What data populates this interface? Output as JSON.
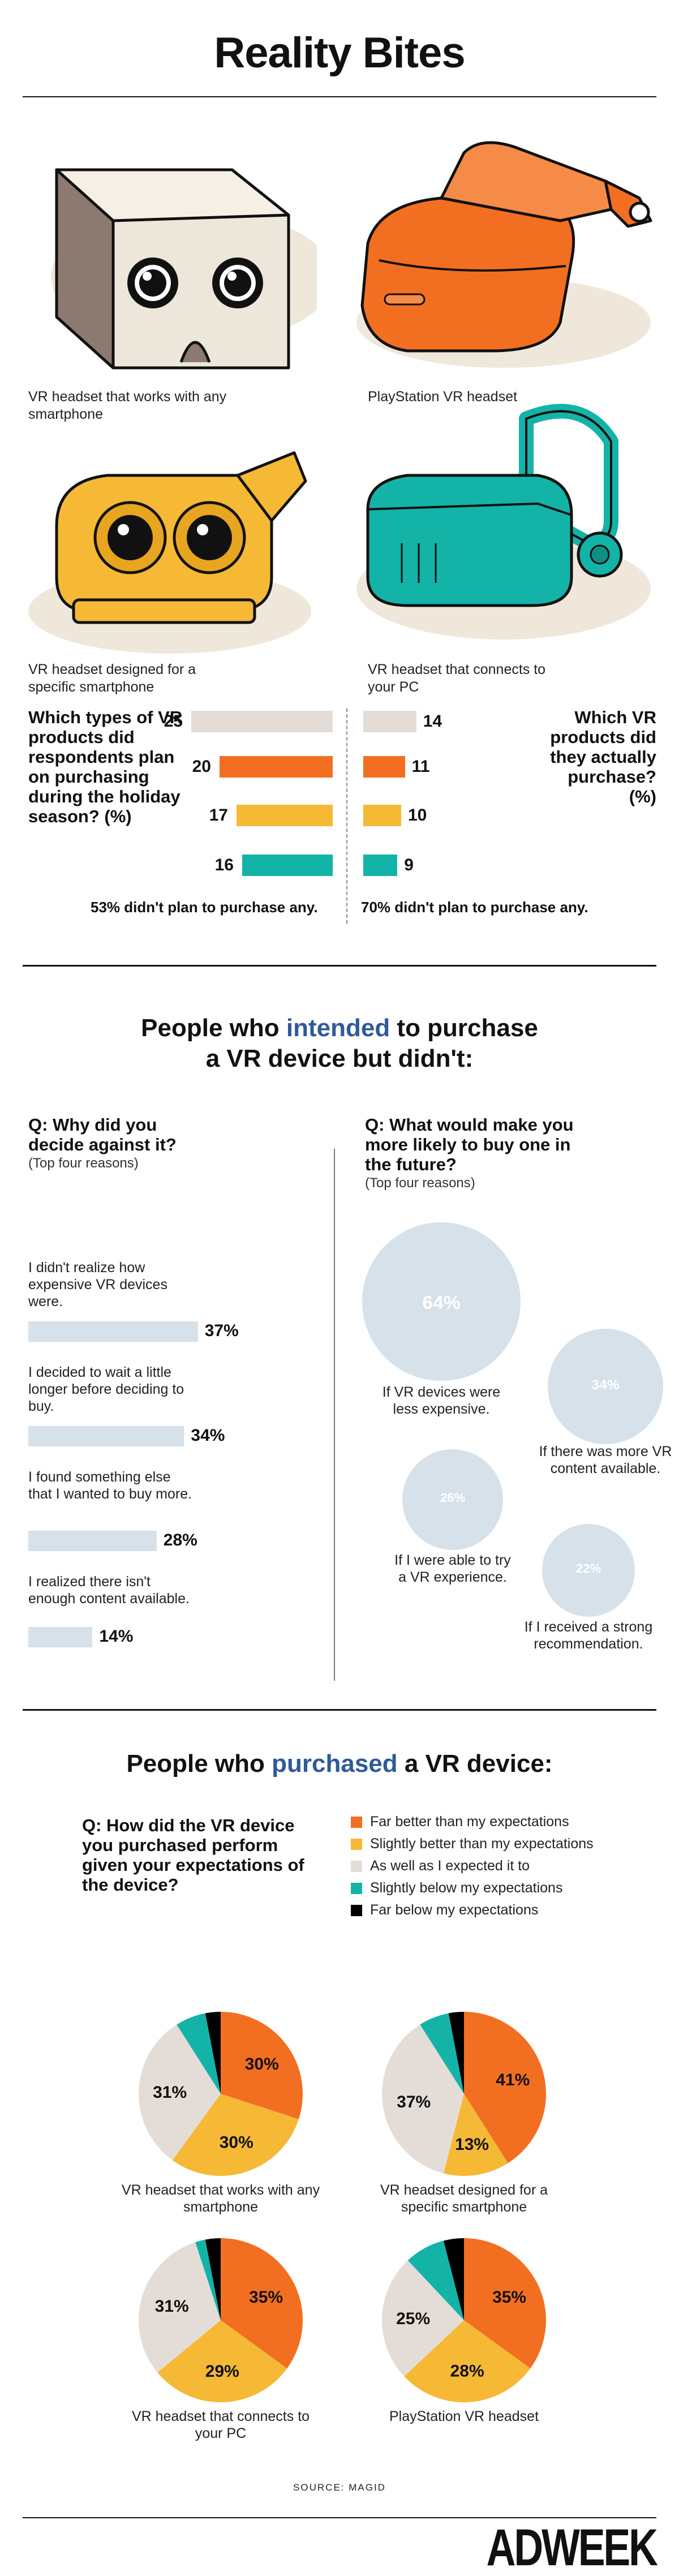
{
  "title": "Reality Bites",
  "devices": [
    {
      "caption": "VR headset that works with any smartphone"
    },
    {
      "caption": "PlayStation VR headset"
    },
    {
      "caption": "VR headset designed for a specific smartphone"
    },
    {
      "caption": "VR headset that connects to your PC"
    }
  ],
  "plan_question": "Which types of VR products did respondents plan on purchasing during the holiday season? (%)",
  "bought_question": "Which VR products did they actually purchase? (%)",
  "plan_note": "53% didn't plan to purchase any.",
  "bought_note": "70% didn't plan to purchase any.",
  "section2": {
    "title_pre": "People who ",
    "title_hl": "intended",
    "title_post": " to purchase",
    "title_line2": "a VR device but didn't:"
  },
  "why_q": {
    "title": "Q: Why did you decide against it?",
    "sub": "(Top four reasons)"
  },
  "reasons": [
    {
      "text": "I didn't realize how expensive VR devices were.",
      "pct": "37%"
    },
    {
      "text": "I decided to wait a little longer before deciding to buy.",
      "pct": "34%"
    },
    {
      "text": "I found something else that I wanted to buy more.",
      "pct": "28%"
    },
    {
      "text": "I realized there isn't enough content available.",
      "pct": "14%"
    }
  ],
  "future_q": {
    "title": "Q: What would make you more likely to buy one in the future?",
    "sub": "(Top four reasons)"
  },
  "future": [
    {
      "pct": "64%",
      "text": "If VR devices were less expensive."
    },
    {
      "pct": "34%",
      "text": "If there was more VR content available."
    },
    {
      "pct": "26%",
      "text": "If I were able to try a VR experience."
    },
    {
      "pct": "22%",
      "text": "If I received a strong recommendation."
    }
  ],
  "section3": {
    "title_pre": "People who ",
    "title_hl": "purchased",
    "title_post": " a VR device:"
  },
  "perf_q": "Q: How did the VR device you purchased perform given your expectations of the device?",
  "legend": [
    {
      "label": "Far better than my expectations",
      "color": "#f26f21"
    },
    {
      "label": "Slightly better than my expectations",
      "color": "#f5b935"
    },
    {
      "label": "As well as I expected it to",
      "color": "#e4ddd7"
    },
    {
      "label": "Slightly below my expectations",
      "color": "#14b3a8"
    },
    {
      "label": "Far below my expectations",
      "color": "#000000"
    }
  ],
  "chart_data": [
    {
      "type": "bar",
      "title": "Which types of VR products did respondents plan on purchasing during the holiday season? (%)",
      "categories": [
        "VR headset that works with any smartphone",
        "PlayStation VR headset",
        "VR headset designed for a specific smartphone",
        "VR headset that connects to your PC"
      ],
      "values": [
        25,
        20,
        17,
        16
      ],
      "colors": [
        "#e4ddd7",
        "#f26f21",
        "#f5b935",
        "#14b3a8"
      ]
    },
    {
      "type": "bar",
      "title": "Which VR products did they actually purchase? (%)",
      "categories": [
        "VR headset that works with any smartphone",
        "PlayStation VR headset",
        "VR headset designed for a specific smartphone",
        "VR headset that connects to your PC"
      ],
      "values": [
        14,
        11,
        10,
        9
      ],
      "colors": [
        "#e4ddd7",
        "#f26f21",
        "#f5b935",
        "#14b3a8"
      ]
    },
    {
      "type": "bar",
      "title": "Q: Why did you decide against it?",
      "categories": [
        "I didn't realize how expensive VR devices were.",
        "I decided to wait a little longer before deciding to buy.",
        "I found something else that I wanted to buy more.",
        "I realized there isn't enough content available."
      ],
      "values": [
        37,
        34,
        28,
        14
      ]
    },
    {
      "type": "scatter",
      "title": "Q: What would make you more likely to buy one in the future?",
      "categories": [
        "If VR devices were less expensive.",
        "If there was more VR content available.",
        "If I were able to try a VR experience.",
        "If I received a strong recommendation."
      ],
      "values": [
        64,
        34,
        26,
        22
      ]
    },
    {
      "type": "pie",
      "title": "VR headset that works with any smartphone",
      "categories": [
        "Far better than my expectations",
        "Slightly better than my expectations",
        "As well as I expected it to",
        "Slightly below my expectations",
        "Far below my expectations"
      ],
      "values": [
        30,
        30,
        31,
        6,
        3
      ],
      "labels": [
        "30%",
        "30%",
        "31%",
        "",
        ""
      ]
    },
    {
      "type": "pie",
      "title": "VR headset designed for a specific smartphone",
      "categories": [
        "Far better than my expectations",
        "Slightly better than my expectations",
        "As well as I expected it to",
        "Slightly below my expectations",
        "Far below my expectations"
      ],
      "values": [
        41,
        13,
        37,
        6,
        3
      ],
      "labels": [
        "41%",
        "13%",
        "37%",
        "",
        ""
      ]
    },
    {
      "type": "pie",
      "title": "VR headset that connects to your PC",
      "categories": [
        "Far better than my expectations",
        "Slightly better than my expectations",
        "As well as I expected it to",
        "Slightly below my expectations",
        "Far below my expectations"
      ],
      "values": [
        35,
        29,
        31,
        2,
        3
      ],
      "labels": [
        "35%",
        "29%",
        "31%",
        "",
        ""
      ]
    },
    {
      "type": "pie",
      "title": "PlayStation VR headset",
      "categories": [
        "Far better than my expectations",
        "Slightly better than my expectations",
        "As well as I expected it to",
        "Slightly below my expectations",
        "Far below my expectations"
      ],
      "values": [
        35,
        28,
        25,
        8,
        4
      ],
      "labels": [
        "35%",
        "28%",
        "25%",
        "",
        ""
      ]
    }
  ],
  "source": "SOURCE: MAGID",
  "logo": "ADWEEK"
}
